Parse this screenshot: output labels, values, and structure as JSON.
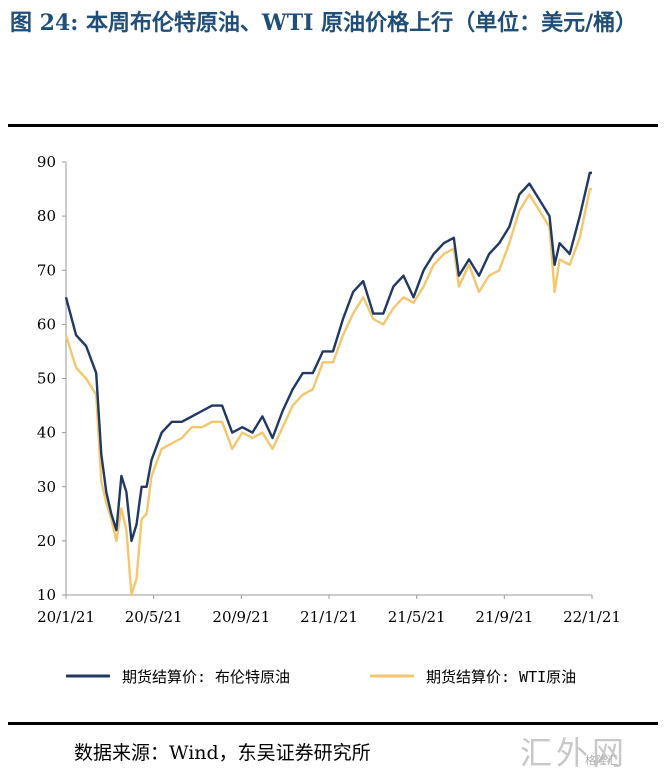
{
  "figure": {
    "title": "图 24: 本周布伦特原油、WTI 原油价格上行（单位：美元/桶）",
    "source": "数据来源：Wind，东吴证券研究所",
    "watermark": "汇外网",
    "watermark_sub": "格隆汇"
  },
  "chart_data": {
    "type": "line",
    "x_tick_labels": [
      "20/1/21",
      "20/5/21",
      "20/9/21",
      "21/1/21",
      "21/5/21",
      "21/9/21",
      "22/1/21"
    ],
    "ylim": [
      10,
      90
    ],
    "yticks": [
      10,
      20,
      30,
      40,
      50,
      60,
      70,
      80,
      90
    ],
    "legend_position": "bottom",
    "grid": false,
    "x": [
      "2020-01-21",
      "2020-02-04",
      "2020-02-18",
      "2020-03-03",
      "2020-03-10",
      "2020-03-17",
      "2020-03-24",
      "2020-03-31",
      "2020-04-07",
      "2020-04-14",
      "2020-04-21",
      "2020-04-28",
      "2020-05-05",
      "2020-05-12",
      "2020-05-19",
      "2020-06-02",
      "2020-06-16",
      "2020-06-30",
      "2020-07-14",
      "2020-07-28",
      "2020-08-11",
      "2020-08-25",
      "2020-09-08",
      "2020-09-22",
      "2020-10-06",
      "2020-10-20",
      "2020-11-03",
      "2020-11-17",
      "2020-12-01",
      "2020-12-15",
      "2020-12-29",
      "2021-01-12",
      "2021-01-26",
      "2021-02-09",
      "2021-02-23",
      "2021-03-09",
      "2021-03-23",
      "2021-04-06",
      "2021-04-20",
      "2021-05-04",
      "2021-05-18",
      "2021-06-01",
      "2021-06-15",
      "2021-06-29",
      "2021-07-13",
      "2021-07-20",
      "2021-08-03",
      "2021-08-17",
      "2021-08-31",
      "2021-09-14",
      "2021-09-28",
      "2021-10-12",
      "2021-10-26",
      "2021-11-09",
      "2021-11-23",
      "2021-11-30",
      "2021-12-07",
      "2021-12-21",
      "2022-01-04",
      "2022-01-18",
      "2022-01-21"
    ],
    "series": [
      {
        "name": "期货结算价: 布伦特原油",
        "color": "#1f3864",
        "values": [
          65,
          58,
          56,
          51,
          36,
          29,
          25,
          22,
          32,
          29,
          20,
          23,
          30,
          30,
          35,
          40,
          42,
          42,
          43,
          44,
          45,
          45,
          40,
          41,
          40,
          43,
          39,
          44,
          48,
          51,
          51,
          55,
          55,
          61,
          66,
          68,
          62,
          62,
          67,
          69,
          65,
          70,
          73,
          75,
          76,
          69,
          72,
          69,
          73,
          75,
          78,
          84,
          86,
          83,
          80,
          71,
          75,
          73,
          80,
          88,
          88
        ]
      },
      {
        "name": "期货结算价: WTI原油",
        "color": "#f2c76e",
        "values": [
          58,
          52,
          50,
          47,
          31,
          27,
          24,
          20,
          26,
          22,
          10,
          13,
          24,
          25,
          32,
          37,
          38,
          39,
          41,
          41,
          42,
          42,
          37,
          40,
          39,
          40,
          37,
          41,
          45,
          47,
          48,
          53,
          53,
          58,
          62,
          65,
          61,
          60,
          63,
          65,
          64,
          67,
          71,
          73,
          74,
          67,
          71,
          66,
          69,
          70,
          75,
          81,
          84,
          81,
          78,
          66,
          72,
          71,
          76,
          85,
          85
        ]
      }
    ]
  }
}
